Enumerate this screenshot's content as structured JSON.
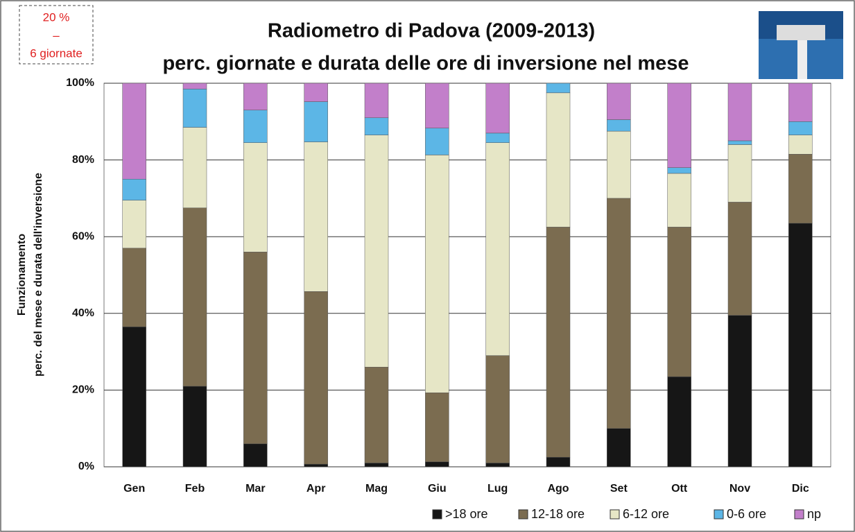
{
  "chart_data": {
    "type": "stacked_bar",
    "title": [
      "Radiometro di Padova (2009-2013)",
      "perc. giornate e durata delle ore di inversione nel mese"
    ],
    "annotations": [
      "20 %",
      "–",
      "6 giornate"
    ],
    "ylabel": [
      "Funzionamento",
      "perc. del mese e durata dell'inversione"
    ],
    "categories": [
      "Gen",
      "Feb",
      "Mar",
      "Apr",
      "Mag",
      "Giu",
      "Lug",
      "Ago",
      "Set",
      "Ott",
      "Nov",
      "Dic"
    ],
    "series": [
      {
        "name": ">18 ore",
        "color": "#161616",
        "values": [
          36.5,
          21,
          6,
          0.7,
          1,
          1.3,
          1,
          2.5,
          10,
          23.5,
          39.5,
          63.5
        ]
      },
      {
        "name": "12-18 ore",
        "color": "#7b6c50",
        "values": [
          20.5,
          46.5,
          50,
          45,
          25,
          18,
          28,
          60,
          60,
          39,
          29.5,
          18
        ]
      },
      {
        "name": "6-12 ore",
        "color": "#e6e6c6",
        "values": [
          12.5,
          21,
          28.5,
          39,
          60.5,
          62,
          55.5,
          35,
          17.5,
          14,
          15,
          5
        ]
      },
      {
        "name": "0-6 ore",
        "color": "#5cb6e6",
        "values": [
          5.5,
          10,
          8.5,
          10.5,
          4.5,
          7,
          2.5,
          2.5,
          3,
          1.5,
          1,
          3.5
        ]
      },
      {
        "name": "np",
        "color": "#c27fca",
        "values": [
          25,
          1.5,
          7,
          4.8,
          9,
          11.7,
          13,
          0,
          9.5,
          22,
          15,
          10
        ]
      }
    ],
    "ylim": [
      0,
      100
    ],
    "yticks": [
      {
        "value": 0,
        "label": "0%"
      },
      {
        "value": 20,
        "label": "20%"
      },
      {
        "value": 40,
        "label": "40%"
      },
      {
        "value": 60,
        "label": "60%"
      },
      {
        "value": 80,
        "label": "80%"
      },
      {
        "value": 100,
        "label": "100%"
      }
    ],
    "grid": true,
    "legend": "bottom"
  }
}
